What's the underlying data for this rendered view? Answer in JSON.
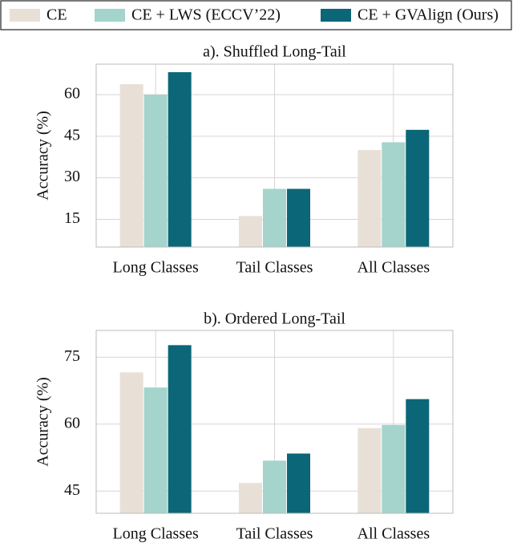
{
  "chart_data": [
    {
      "type": "bar",
      "title": "a). Shuffled Long-Tail",
      "y_label": "Accuracy (%)",
      "categories": [
        "Long Classes",
        "Tail Classes",
        "All Classes"
      ],
      "series": [
        {
          "name": "CE",
          "color": "#e8e0d6",
          "values": [
            63.8,
            16.2,
            40
          ]
        },
        {
          "name": "CE + LWS (ECCV’22)",
          "color": "#a4d4cc",
          "values": [
            60,
            26,
            42.8
          ]
        },
        {
          "name": "CE + GVAlign (Ours)",
          "color": "#0b6677",
          "values": [
            68.1,
            26,
            47.3
          ]
        }
      ],
      "ylim": [
        5,
        71
      ],
      "yticks": [
        15,
        30,
        45,
        60
      ],
      "grid": true
    },
    {
      "type": "bar",
      "title": "b). Ordered Long-Tail",
      "y_label": "Accuracy (%)",
      "categories": [
        "Long Classes",
        "Tail Classes",
        "All Classes"
      ],
      "series": [
        {
          "color": "#e8e0d6",
          "values": [
            71.6,
            46.8,
            59.1
          ]
        },
        {
          "color": "#a4d4cc",
          "values": [
            68.2,
            51.8,
            59.8
          ]
        },
        {
          "color": "#0b6677",
          "values": [
            77.7,
            53.4,
            65.6
          ]
        }
      ],
      "ylim": [
        40,
        81
      ],
      "yticks": [
        45,
        60,
        75
      ],
      "grid": true
    }
  ]
}
